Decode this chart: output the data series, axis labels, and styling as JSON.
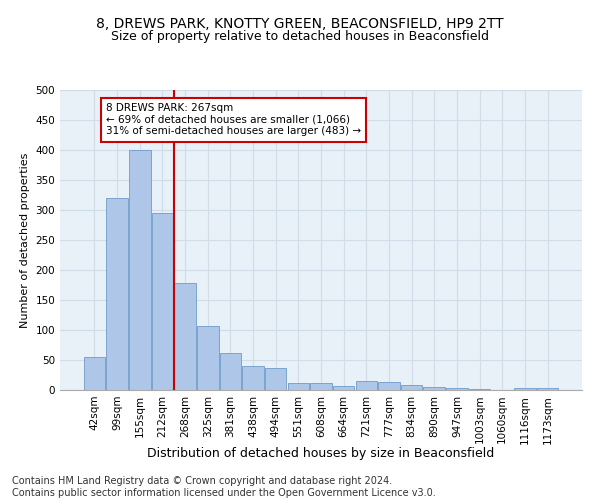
{
  "title1": "8, DREWS PARK, KNOTTY GREEN, BEACONSFIELD, HP9 2TT",
  "title2": "Size of property relative to detached houses in Beaconsfield",
  "xlabel": "Distribution of detached houses by size in Beaconsfield",
  "ylabel": "Number of detached properties",
  "categories": [
    "42sqm",
    "99sqm",
    "155sqm",
    "212sqm",
    "268sqm",
    "325sqm",
    "381sqm",
    "438sqm",
    "494sqm",
    "551sqm",
    "608sqm",
    "664sqm",
    "721sqm",
    "777sqm",
    "834sqm",
    "890sqm",
    "947sqm",
    "1003sqm",
    "1060sqm",
    "1116sqm",
    "1173sqm"
  ],
  "values": [
    55,
    320,
    400,
    295,
    178,
    107,
    62,
    40,
    37,
    11,
    11,
    7,
    15,
    14,
    8,
    5,
    3,
    1,
    0,
    3,
    4
  ],
  "bar_color": "#aec6e8",
  "bar_edge_color": "#5a8fc2",
  "vline_x_index": 4,
  "vline_color": "#cc0000",
  "annotation_text": "8 DREWS PARK: 267sqm\n← 69% of detached houses are smaller (1,066)\n31% of semi-detached houses are larger (483) →",
  "annotation_box_color": "#cc0000",
  "ylim": [
    0,
    500
  ],
  "yticks": [
    0,
    50,
    100,
    150,
    200,
    250,
    300,
    350,
    400,
    450,
    500
  ],
  "grid_color": "#d0dce8",
  "bg_color": "#e8f0f8",
  "footer": "Contains HM Land Registry data © Crown copyright and database right 2024.\nContains public sector information licensed under the Open Government Licence v3.0.",
  "title1_fontsize": 10,
  "title2_fontsize": 9,
  "xlabel_fontsize": 9,
  "ylabel_fontsize": 8,
  "tick_fontsize": 7.5,
  "footer_fontsize": 7
}
